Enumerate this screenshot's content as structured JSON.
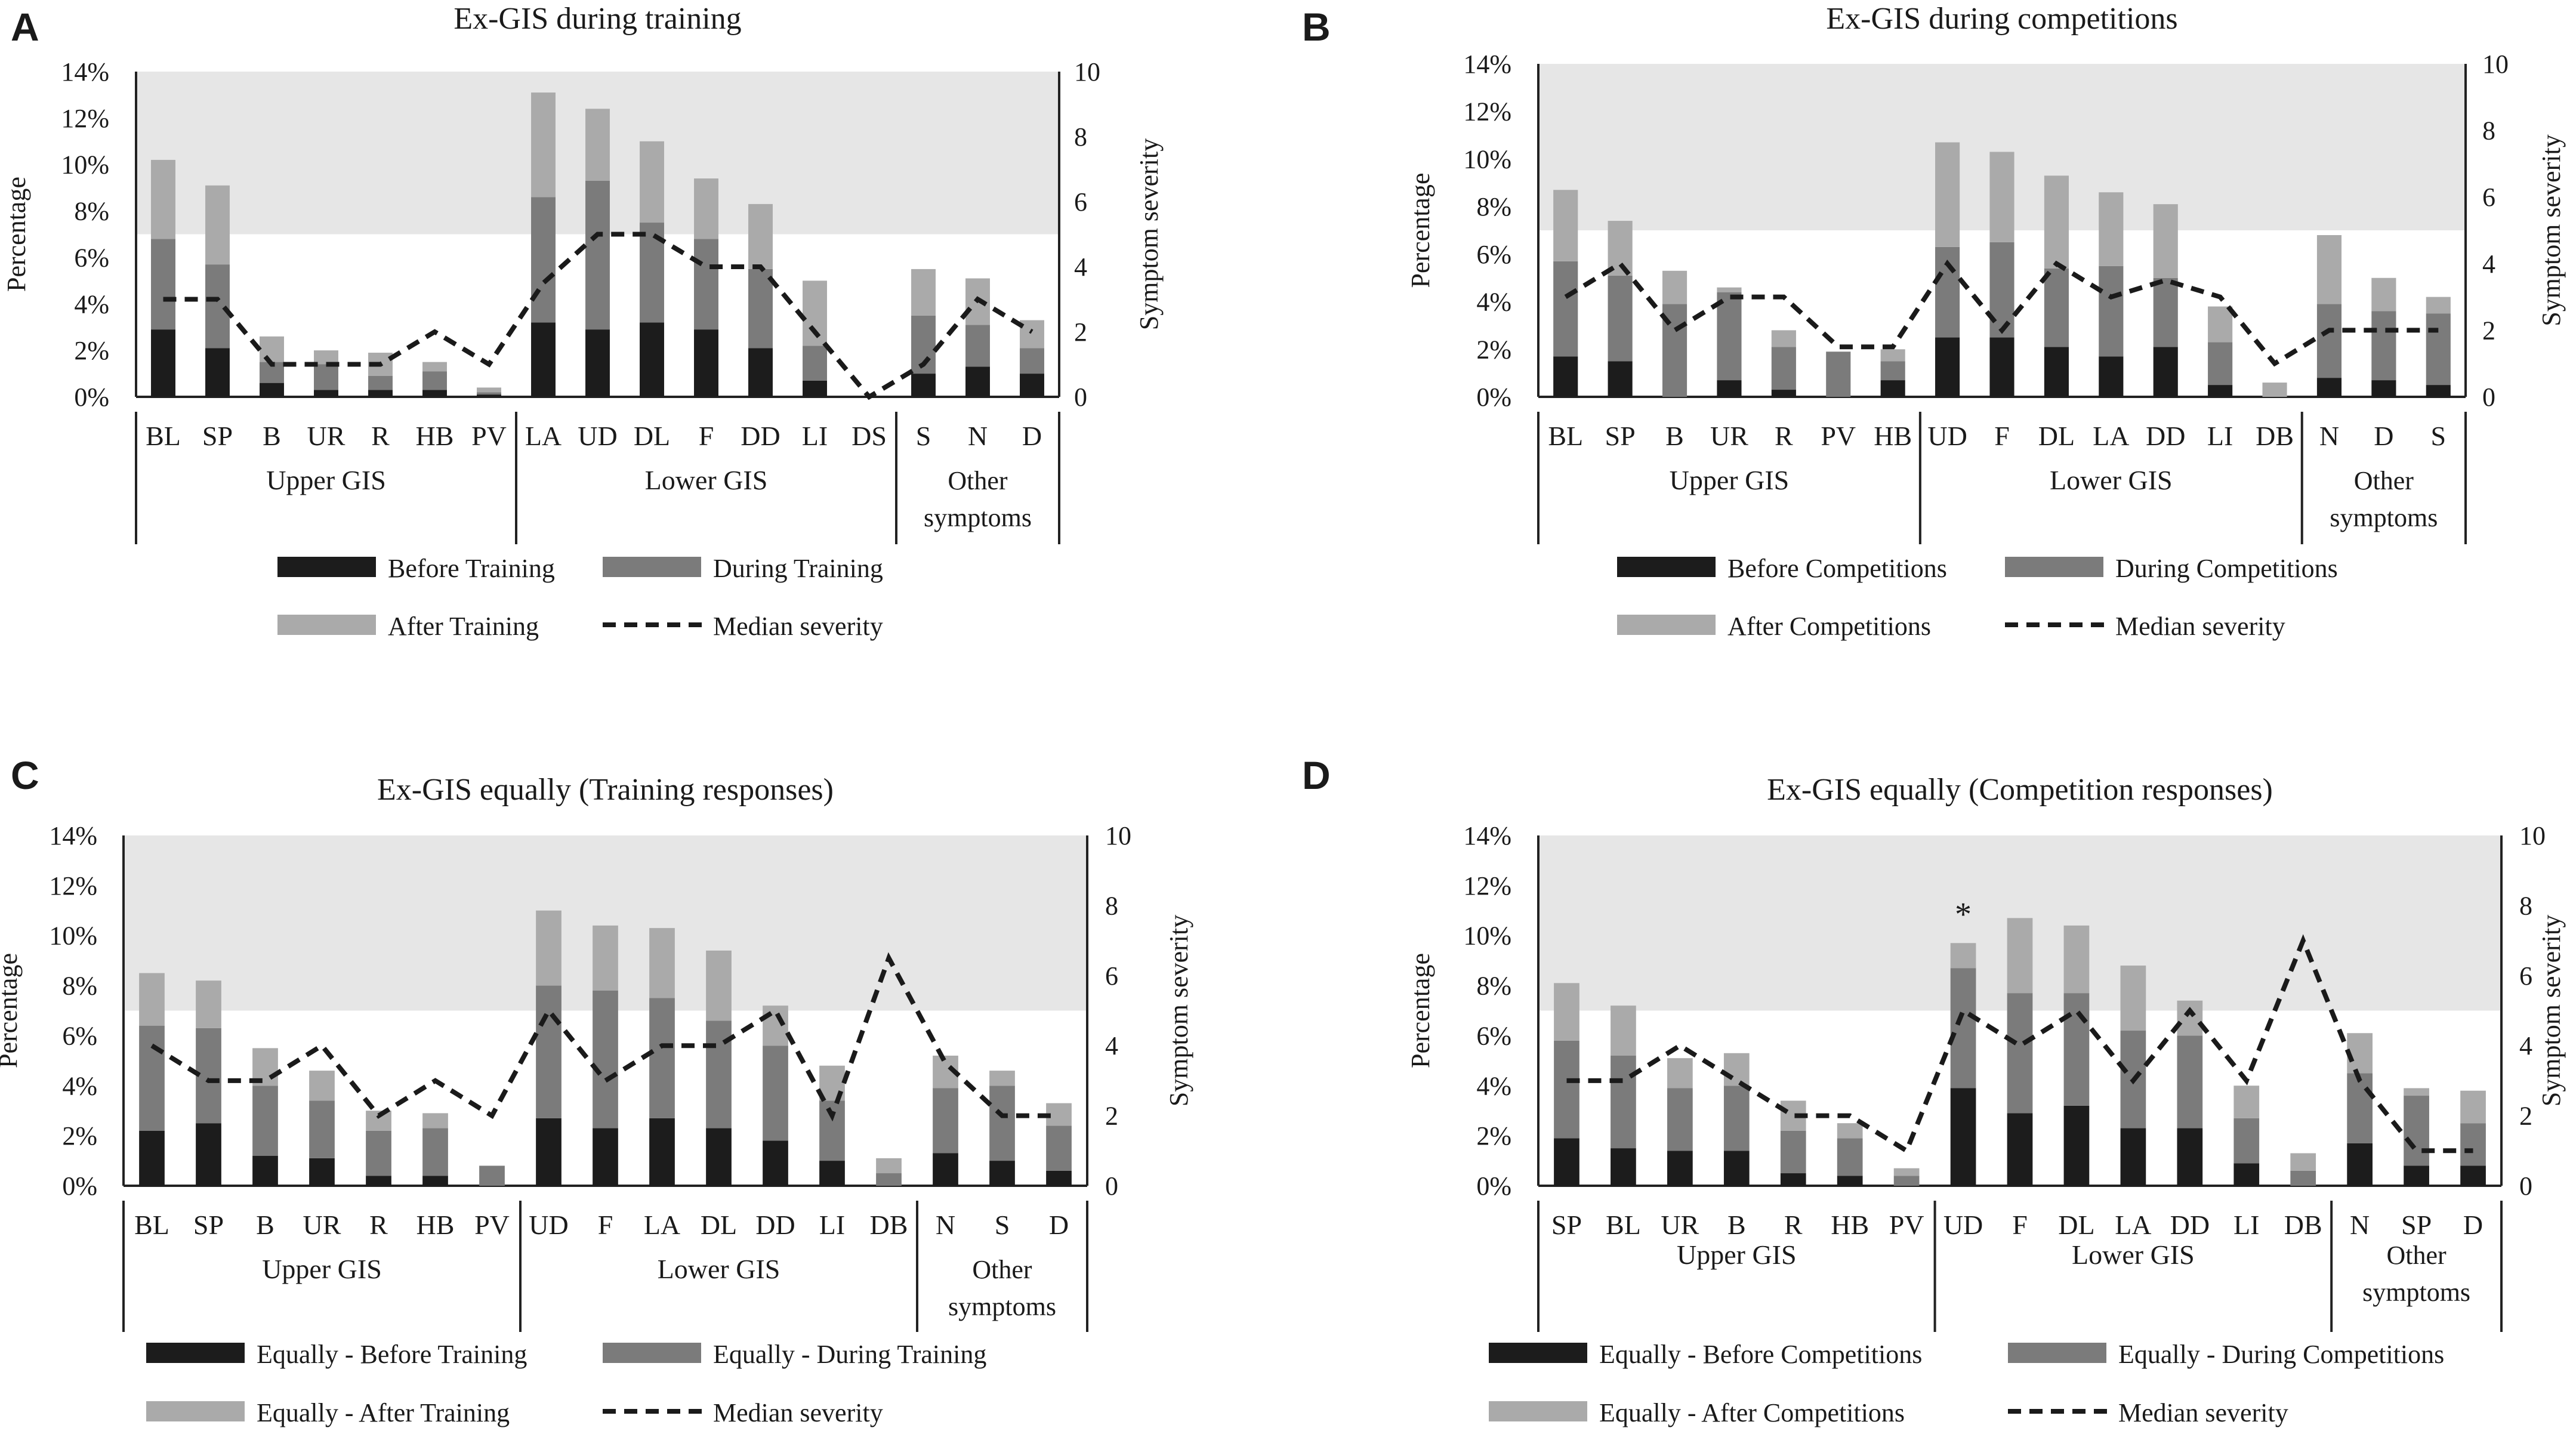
{
  "colors": {
    "before": "#1c1c1c",
    "during": "#7b7b7b",
    "after": "#aaaaaa",
    "shade": "#e6e6e6",
    "axis": "#222222",
    "median_line": "#1a1a1a"
  },
  "chart_data": [
    {
      "panel": "A",
      "type": "bar",
      "stacked": true,
      "title": "Ex-GIS during training",
      "ylabel": "Percentage",
      "y2label": "Symptom severity",
      "ylim": [
        0,
        14
      ],
      "yticks": [
        "0%",
        "2%",
        "4%",
        "6%",
        "8%",
        "10%",
        "12%",
        "14%"
      ],
      "y2lim": [
        0,
        10
      ],
      "y2ticks": [
        "0",
        "2",
        "4",
        "6",
        "8",
        "10"
      ],
      "shaded_band": [
        7,
        14
      ],
      "categories": [
        "BL",
        "SP",
        "B",
        "UR",
        "R",
        "HB",
        "PV",
        "LA",
        "UD",
        "DL",
        "F",
        "DD",
        "LI",
        "DS",
        "S",
        "N",
        "D"
      ],
      "groups": [
        {
          "label": "Upper GIS",
          "count": 7
        },
        {
          "label": "Lower GIS",
          "count": 7
        },
        {
          "label": "Other symptoms",
          "count": 3
        }
      ],
      "series": [
        {
          "name": "Before Training",
          "values": [
            2.9,
            2.1,
            0.6,
            0.3,
            0.3,
            0.3,
            0.1,
            3.2,
            2.9,
            3.2,
            2.9,
            2.1,
            0.7,
            0.0,
            1.0,
            1.3,
            1.0
          ]
        },
        {
          "name": "During Training",
          "values": [
            3.9,
            3.6,
            0.9,
            1.1,
            0.6,
            0.8,
            0.1,
            5.4,
            6.4,
            4.3,
            3.9,
            3.4,
            1.5,
            0.0,
            2.5,
            1.8,
            1.1
          ]
        },
        {
          "name": "After Training",
          "values": [
            3.4,
            3.4,
            1.1,
            0.6,
            1.0,
            0.4,
            0.2,
            4.5,
            3.1,
            3.5,
            2.6,
            2.8,
            2.8,
            0.0,
            2.0,
            2.0,
            1.2
          ]
        }
      ],
      "median_severity": [
        3,
        3,
        1,
        1,
        1,
        2,
        1,
        3.5,
        5,
        5,
        4,
        4,
        2,
        0,
        1,
        3,
        2
      ],
      "legend": [
        "Before Training",
        "During Training",
        "After Training",
        "Median severity"
      ],
      "annotations": []
    },
    {
      "panel": "B",
      "type": "bar",
      "stacked": true,
      "title": "Ex-GIS during competitions",
      "ylabel": "Percentage",
      "y2label": "Symptom severity",
      "ylim": [
        0,
        14
      ],
      "yticks": [
        "0%",
        "2%",
        "4%",
        "6%",
        "8%",
        "10%",
        "12%",
        "14%"
      ],
      "y2lim": [
        0,
        10
      ],
      "y2ticks": [
        "0",
        "2",
        "4",
        "6",
        "8",
        "10"
      ],
      "shaded_band": [
        7,
        14
      ],
      "categories": [
        "BL",
        "SP",
        "B",
        "UR",
        "R",
        "PV",
        "HB",
        "UD",
        "F",
        "DL",
        "LA",
        "DD",
        "LI",
        "DB",
        "N",
        "D",
        "S"
      ],
      "groups": [
        {
          "label": "Upper GIS",
          "count": 7
        },
        {
          "label": "Lower GIS",
          "count": 7
        },
        {
          "label": "Other symptoms",
          "count": 3
        }
      ],
      "series": [
        {
          "name": "Before Competitions",
          "values": [
            1.7,
            1.5,
            0.0,
            0.7,
            0.3,
            0.0,
            0.7,
            2.5,
            2.5,
            2.1,
            1.7,
            2.1,
            0.5,
            0.0,
            0.8,
            0.7,
            0.5
          ]
        },
        {
          "name": "During Competitions",
          "values": [
            4.0,
            3.6,
            3.9,
            3.7,
            1.8,
            1.9,
            0.8,
            3.8,
            4.0,
            3.3,
            3.8,
            2.9,
            1.8,
            0.0,
            3.1,
            2.9,
            3.0
          ]
        },
        {
          "name": "After Competitions",
          "values": [
            3.0,
            2.3,
            1.4,
            0.2,
            0.7,
            0.0,
            0.5,
            4.4,
            3.8,
            3.9,
            3.1,
            3.1,
            1.5,
            0.6,
            2.9,
            1.4,
            0.7
          ]
        }
      ],
      "median_severity": [
        3,
        4,
        2,
        3,
        3,
        1.5,
        1.5,
        4,
        2,
        4,
        3,
        3.5,
        3,
        1,
        2,
        2,
        2
      ],
      "legend": [
        "Before Competitions",
        "During Competitions",
        "After Competitions",
        "Median severity"
      ],
      "annotations": []
    },
    {
      "panel": "C",
      "type": "bar",
      "stacked": true,
      "title": "Ex-GIS equally (Training responses)",
      "ylabel": "Percentage",
      "y2label": "Symptom severity",
      "ylim": [
        0,
        14
      ],
      "yticks": [
        "0%",
        "2%",
        "4%",
        "6%",
        "8%",
        "10%",
        "12%",
        "14%"
      ],
      "y2lim": [
        0,
        10
      ],
      "y2ticks": [
        "0",
        "2",
        "4",
        "6",
        "8",
        "10"
      ],
      "shaded_band": [
        7,
        14
      ],
      "categories": [
        "BL",
        "SP",
        "B",
        "UR",
        "R",
        "HB",
        "PV",
        "UD",
        "F",
        "LA",
        "DL",
        "DD",
        "LI",
        "DB",
        "N",
        "S",
        "D"
      ],
      "groups": [
        {
          "label": "Upper GIS",
          "count": 7
        },
        {
          "label": "Lower GIS",
          "count": 7
        },
        {
          "label": "Other symptoms",
          "count": 3
        }
      ],
      "series": [
        {
          "name": "Equally  - Before Training",
          "values": [
            2.2,
            2.5,
            1.2,
            1.1,
            0.4,
            0.4,
            0.0,
            2.7,
            2.3,
            2.7,
            2.3,
            1.8,
            1.0,
            0.0,
            1.3,
            1.0,
            0.6
          ]
        },
        {
          "name": "Equally  - During Training",
          "values": [
            4.2,
            3.8,
            2.8,
            2.3,
            1.8,
            1.9,
            0.8,
            5.3,
            5.5,
            4.8,
            4.3,
            3.8,
            2.4,
            0.5,
            2.6,
            3.0,
            1.8
          ]
        },
        {
          "name": "Equally  - After Training",
          "values": [
            2.1,
            1.9,
            1.5,
            1.2,
            0.8,
            0.6,
            0.0,
            3.0,
            2.6,
            2.8,
            2.8,
            1.6,
            1.4,
            0.6,
            1.3,
            0.6,
            0.9
          ]
        }
      ],
      "median_severity": [
        4,
        3,
        3,
        4,
        2,
        3,
        2,
        5,
        3,
        4,
        4,
        5,
        2,
        6.5,
        3.5,
        2,
        2
      ],
      "legend": [
        "Equally  - Before Training",
        "Equally  - During Training",
        "Equally  - After Training",
        "Median severity"
      ],
      "annotations": []
    },
    {
      "panel": "D",
      "type": "bar",
      "stacked": true,
      "title": "Ex-GIS equally (Competition responses)",
      "ylabel": "Percentage",
      "y2label": "Symptom severity",
      "ylim": [
        0,
        14
      ],
      "yticks": [
        "0%",
        "2%",
        "4%",
        "6%",
        "8%",
        "10%",
        "12%",
        "14%"
      ],
      "y2lim": [
        0,
        10
      ],
      "y2ticks": [
        "0",
        "2",
        "4",
        "6",
        "8",
        "10"
      ],
      "shaded_band": [
        7,
        14
      ],
      "categories": [
        "SP",
        "BL",
        "UR",
        "B",
        "R",
        "HB",
        "PV",
        "UD",
        "F",
        "DL",
        "LA",
        "DD",
        "LI",
        "DB",
        "N",
        "SP",
        "D"
      ],
      "groups": [
        {
          "label": "Upper GIS",
          "count": 7
        },
        {
          "label": "Lower GIS",
          "count": 7
        },
        {
          "label": "Other symptoms",
          "count": 3
        }
      ],
      "series": [
        {
          "name": "Equally - Before  Competitions",
          "values": [
            1.9,
            1.5,
            1.4,
            1.4,
            0.5,
            0.4,
            0.0,
            3.9,
            2.9,
            3.2,
            2.3,
            2.3,
            0.9,
            0.0,
            1.7,
            0.8,
            0.8
          ]
        },
        {
          "name": "Equally  - During Competitions",
          "values": [
            3.9,
            3.7,
            2.5,
            2.6,
            1.7,
            1.5,
            0.4,
            4.8,
            4.8,
            4.5,
            3.9,
            3.7,
            1.8,
            0.6,
            2.8,
            2.8,
            1.7
          ]
        },
        {
          "name": "Equally  - After Competitions",
          "values": [
            2.3,
            2.0,
            1.2,
            1.3,
            1.2,
            0.6,
            0.3,
            1.0,
            3.0,
            2.7,
            2.6,
            1.4,
            1.3,
            0.7,
            1.6,
            0.3,
            1.3
          ]
        }
      ],
      "median_severity": [
        3,
        3,
        4,
        3,
        2,
        2,
        1,
        5,
        4,
        5,
        3,
        5,
        3,
        7,
        3,
        1,
        1
      ],
      "legend": [
        "Equally - Before  Competitions",
        "Equally  - During Competitions",
        "Equally  - After Competitions",
        "Median severity"
      ],
      "annotations": [
        {
          "text": "*",
          "category": "UD"
        }
      ]
    }
  ]
}
